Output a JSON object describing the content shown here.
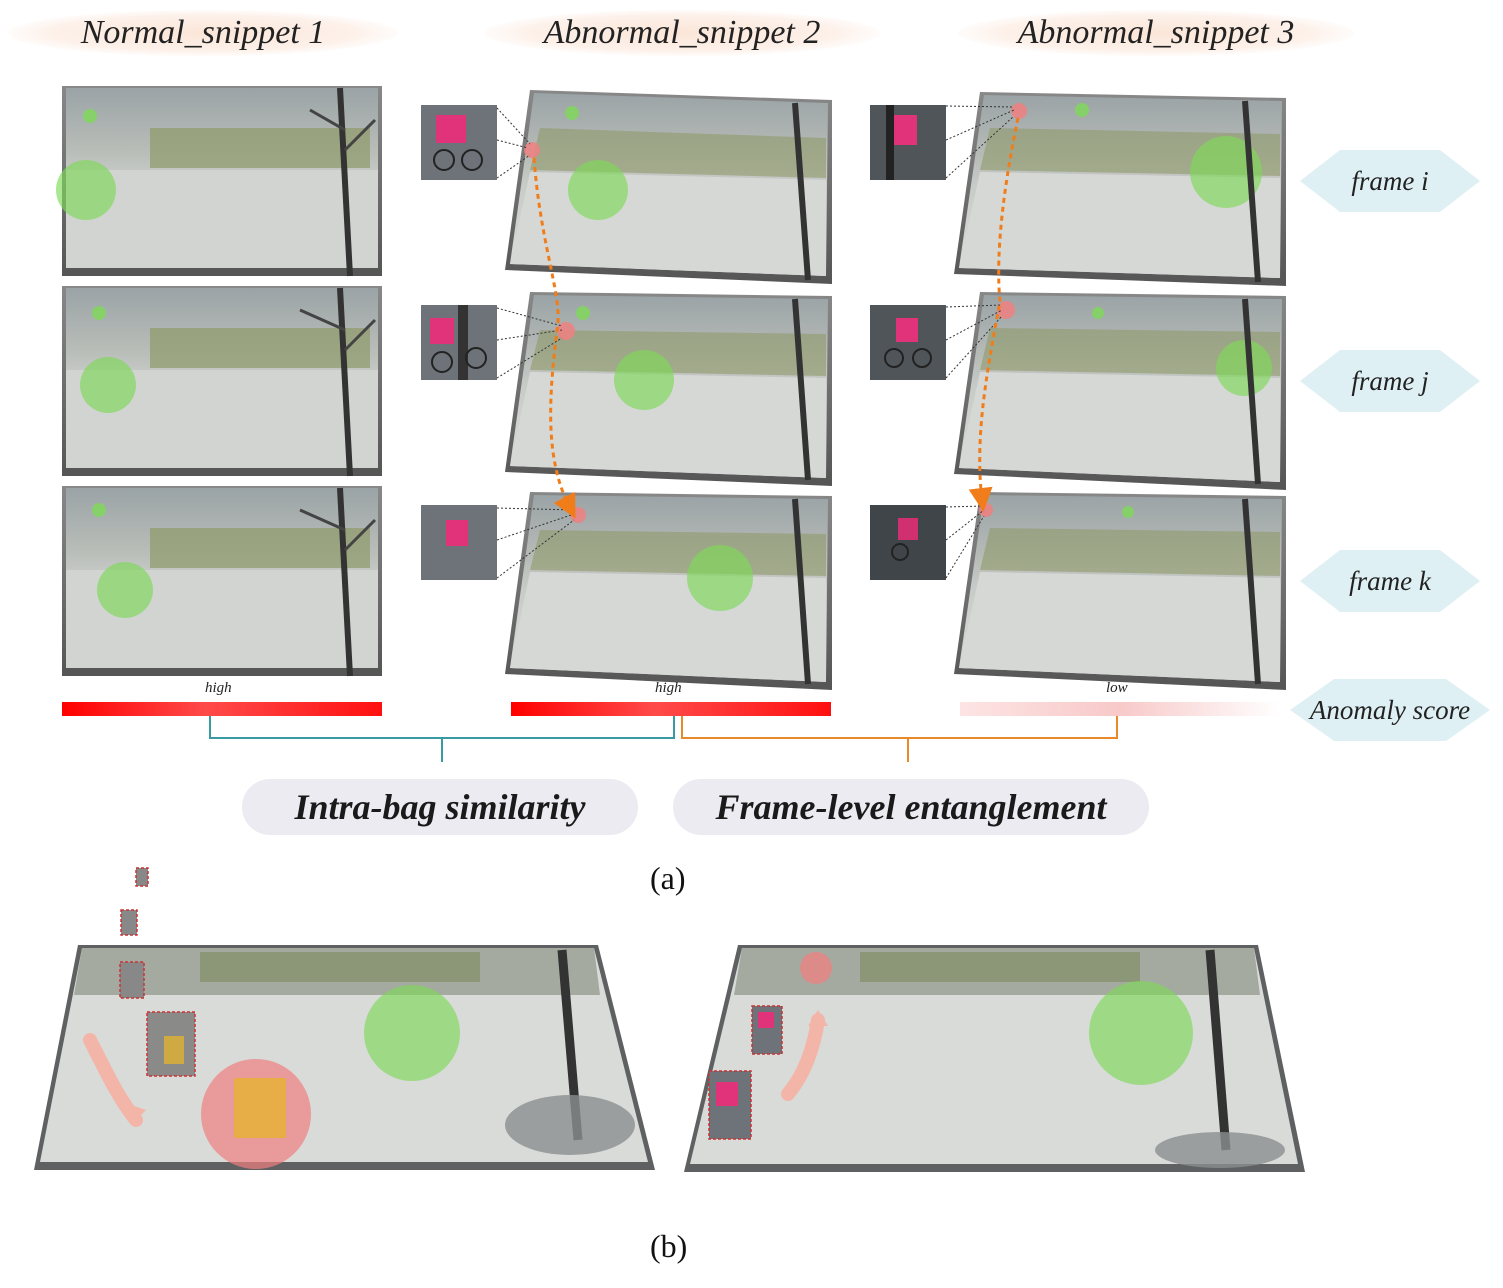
{
  "headers": {
    "normal": "Normal_snippet 1",
    "abnormal2": "Abnormal_snippet 2",
    "abnormal3": "Abnormal_snippet 3"
  },
  "frame_labels": [
    "frame i",
    "frame j",
    "frame k"
  ],
  "anomaly_score_label": "Anomaly score",
  "score_levels": {
    "normal": "high",
    "abnormal2": "high",
    "abnormal3": "low"
  },
  "concepts": {
    "left": "Intra-bag similarity",
    "right": "Frame-level entanglement"
  },
  "sublabels": {
    "a": "(a)",
    "b": "(b)"
  },
  "colors": {
    "normal_region": "#7ed957",
    "abnormal_region": "#f08080",
    "score_high": "#ff0000",
    "score_low": "#fbd3d3",
    "teal_bracket": "#3a9aa3",
    "orange_bracket": "#e88a2a",
    "trajectory": "#f07d1a",
    "frame_tag_fill": "#dff0f4",
    "pill_fill": "#ecebf2"
  }
}
